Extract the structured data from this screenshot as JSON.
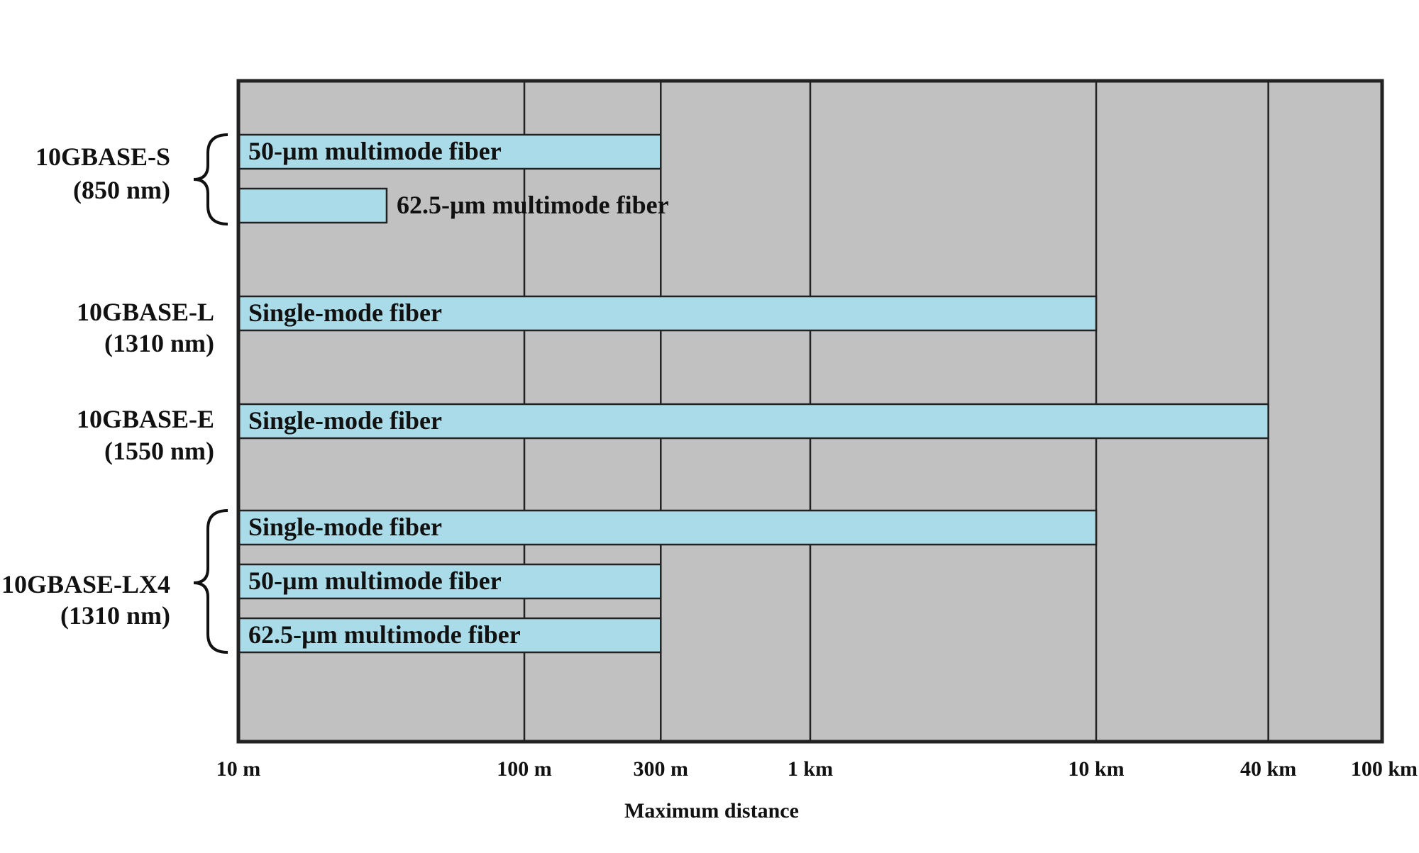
{
  "chart_data": {
    "type": "bar",
    "orientation": "horizontal",
    "x_scale": "log",
    "xlim_m": [
      10,
      100000
    ],
    "grid": true,
    "xlabel": "Maximum distance",
    "ticks": [
      {
        "label": "10 m",
        "value": 10
      },
      {
        "label": "100 m",
        "value": 100
      },
      {
        "label": "300 m",
        "value": 300
      },
      {
        "label": "1 km",
        "value": 1000
      },
      {
        "label": "10 km",
        "value": 10000
      },
      {
        "label": "40 km",
        "value": 40000
      },
      {
        "label": "100 km",
        "value": 100000
      }
    ],
    "groups": [
      {
        "name": "10GBASE-S",
        "wavelength": "(850 nm)",
        "bars": [
          {
            "label": "50-µm multimode fiber",
            "value": 300,
            "label_outside": false
          },
          {
            "label": "62.5-µm multimode fiber",
            "value": 33,
            "label_outside": true
          }
        ]
      },
      {
        "name": "10GBASE-L",
        "wavelength": "(1310 nm)",
        "bars": [
          {
            "label": "Single-mode fiber",
            "value": 10000,
            "label_outside": false
          }
        ]
      },
      {
        "name": "10GBASE-E",
        "wavelength": "(1550 nm)",
        "bars": [
          {
            "label": "Single-mode fiber",
            "value": 40000,
            "label_outside": false
          }
        ]
      },
      {
        "name": "10GBASE-LX4",
        "wavelength": "(1310 nm)",
        "bars": [
          {
            "label": "Single-mode fiber",
            "value": 10000,
            "label_outside": false
          },
          {
            "label": "50-µm multimode fiber",
            "value": 300,
            "label_outside": false
          },
          {
            "label": "62.5-µm multimode fiber",
            "value": 300,
            "label_outside": false
          }
        ]
      }
    ],
    "colors": {
      "plot_bg": "#c0c1c0",
      "bar_fill": "#a9dbe8",
      "line": "#222222"
    }
  }
}
